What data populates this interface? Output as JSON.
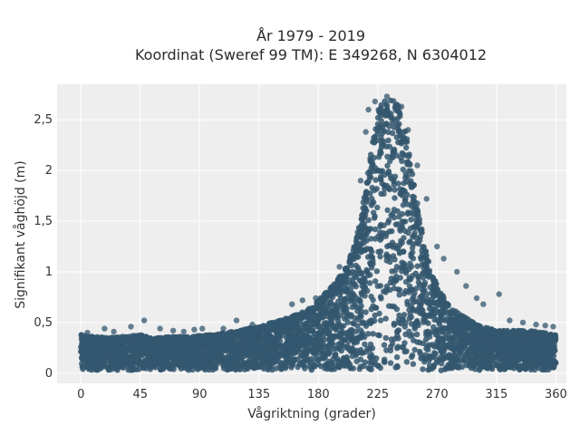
{
  "chart_data": {
    "type": "scatter",
    "title_lines": [
      "År 1979 - 2019",
      "Koordinat (Sweref 99 TM): E 349268, N 6304012"
    ],
    "xlabel": "Vågriktning (grader)",
    "ylabel": "Signifikant våghöjd (m)",
    "xlim": [
      -18,
      368
    ],
    "ylim": [
      -0.1,
      2.85
    ],
    "x_ticks": [
      0,
      45,
      90,
      135,
      180,
      225,
      270,
      315,
      360
    ],
    "x_tick_labels": [
      "0",
      "45",
      "90",
      "135",
      "180",
      "225",
      "270",
      "315",
      "360"
    ],
    "y_ticks": [
      0,
      0.5,
      1,
      1.5,
      2,
      2.5
    ],
    "y_tick_labels": [
      "0",
      "0,5",
      "1",
      "1,5",
      "2",
      "2,5"
    ],
    "grid": true,
    "legend": "none",
    "marker_color": "#34576e",
    "plot_background": "#eeeeee",
    "envelope": {
      "x": [
        0,
        10,
        20,
        30,
        40,
        45,
        50,
        60,
        70,
        80,
        90,
        100,
        110,
        120,
        130,
        135,
        140,
        150,
        160,
        170,
        175,
        180,
        190,
        200,
        205,
        210,
        215,
        220,
        225,
        230,
        235,
        240,
        245,
        250,
        255,
        260,
        265,
        270,
        275,
        280,
        285,
        290,
        295,
        300,
        310,
        315,
        320,
        330,
        340,
        350,
        360
      ],
      "y_min": [
        0.03,
        0.03,
        0.03,
        0.03,
        0.03,
        0.03,
        0.03,
        0.03,
        0.03,
        0.03,
        0.03,
        0.03,
        0.03,
        0.03,
        0.03,
        0.03,
        0.03,
        0.03,
        0.03,
        0.03,
        0.03,
        0.03,
        0.03,
        0.03,
        0.03,
        0.03,
        0.03,
        0.03,
        0.03,
        0.03,
        0.03,
        0.03,
        0.03,
        0.03,
        0.03,
        0.03,
        0.03,
        0.02,
        0.02,
        0.02,
        0.03,
        0.03,
        0.03,
        0.03,
        0.03,
        0.03,
        0.03,
        0.03,
        0.03,
        0.03,
        0.03
      ],
      "y_max": [
        0.38,
        0.36,
        0.35,
        0.36,
        0.37,
        0.38,
        0.36,
        0.35,
        0.36,
        0.36,
        0.37,
        0.38,
        0.4,
        0.42,
        0.45,
        0.46,
        0.48,
        0.52,
        0.56,
        0.62,
        0.66,
        0.72,
        0.85,
        1.02,
        1.18,
        1.4,
        1.75,
        2.2,
        2.6,
        2.7,
        2.72,
        2.65,
        2.5,
        2.1,
        1.7,
        1.3,
        1.02,
        0.88,
        0.75,
        0.66,
        0.6,
        0.56,
        0.52,
        0.48,
        0.44,
        0.42,
        0.42,
        0.42,
        0.42,
        0.4,
        0.38
      ]
    },
    "outliers": [
      {
        "x": 5,
        "y": 0.4
      },
      {
        "x": 18,
        "y": 0.44
      },
      {
        "x": 25,
        "y": 0.41
      },
      {
        "x": 38,
        "y": 0.46
      },
      {
        "x": 48,
        "y": 0.52
      },
      {
        "x": 60,
        "y": 0.44
      },
      {
        "x": 70,
        "y": 0.42
      },
      {
        "x": 78,
        "y": 0.41
      },
      {
        "x": 86,
        "y": 0.43
      },
      {
        "x": 92,
        "y": 0.44
      },
      {
        "x": 108,
        "y": 0.44
      },
      {
        "x": 118,
        "y": 0.52
      },
      {
        "x": 130,
        "y": 0.48
      },
      {
        "x": 160,
        "y": 0.68
      },
      {
        "x": 168,
        "y": 0.72
      },
      {
        "x": 178,
        "y": 0.74
      },
      {
        "x": 196,
        "y": 1.05
      },
      {
        "x": 212,
        "y": 1.9
      },
      {
        "x": 216,
        "y": 2.38
      },
      {
        "x": 218,
        "y": 2.6
      },
      {
        "x": 223,
        "y": 2.68
      },
      {
        "x": 232,
        "y": 2.73
      },
      {
        "x": 243,
        "y": 2.63
      },
      {
        "x": 248,
        "y": 2.4
      },
      {
        "x": 255,
        "y": 2.05
      },
      {
        "x": 262,
        "y": 1.72
      },
      {
        "x": 270,
        "y": 1.25
      },
      {
        "x": 275,
        "y": 1.13
      },
      {
        "x": 285,
        "y": 1.0
      },
      {
        "x": 292,
        "y": 0.86
      },
      {
        "x": 300,
        "y": 0.74
      },
      {
        "x": 305,
        "y": 0.68
      },
      {
        "x": 317,
        "y": 0.78
      },
      {
        "x": 325,
        "y": 0.52
      },
      {
        "x": 335,
        "y": 0.5
      },
      {
        "x": 345,
        "y": 0.48
      },
      {
        "x": 352,
        "y": 0.47
      },
      {
        "x": 358,
        "y": 0.46
      }
    ],
    "cloud_point_count": 4200
  }
}
